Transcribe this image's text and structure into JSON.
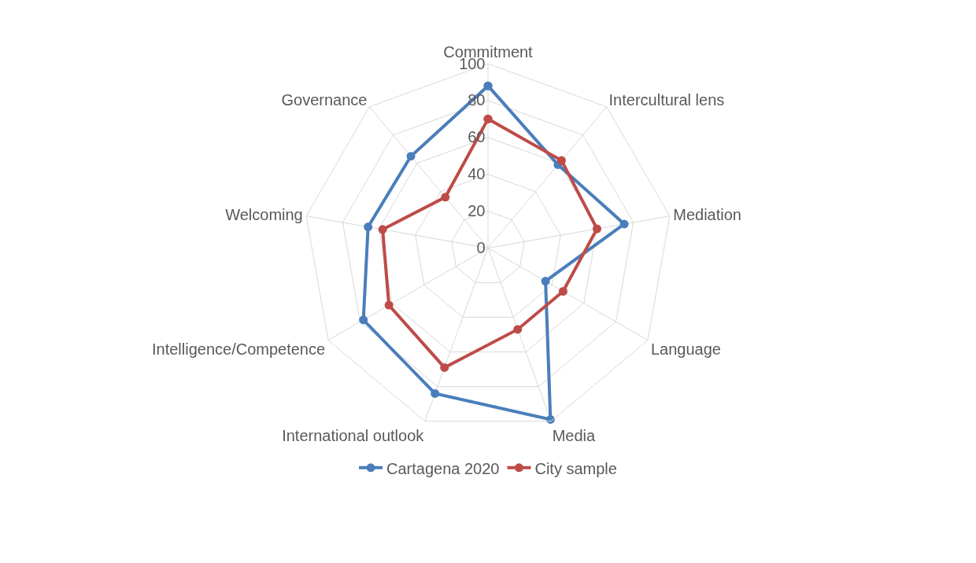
{
  "chart_data": {
    "type": "radar",
    "categories": [
      "Commitment",
      "Intercultural lens",
      "Mediation",
      "Language",
      "Media",
      "International outlook",
      "Intelligence/Competence",
      "Welcoming",
      "Governance"
    ],
    "series": [
      {
        "name": "Cartagena 2020",
        "color": "#4a7ebb",
        "values": [
          88,
          59,
          75,
          36,
          99,
          84,
          78,
          66,
          65
        ]
      },
      {
        "name": "City sample",
        "color": "#be4b48",
        "values": [
          70,
          62,
          60,
          47,
          47,
          69,
          62,
          58,
          36
        ]
      }
    ],
    "ylim": [
      0,
      100
    ],
    "yticks": [
      0,
      20,
      40,
      60,
      80,
      100
    ],
    "grid": true,
    "legend": "bottom",
    "marker": "circle",
    "line_style": "solid"
  }
}
